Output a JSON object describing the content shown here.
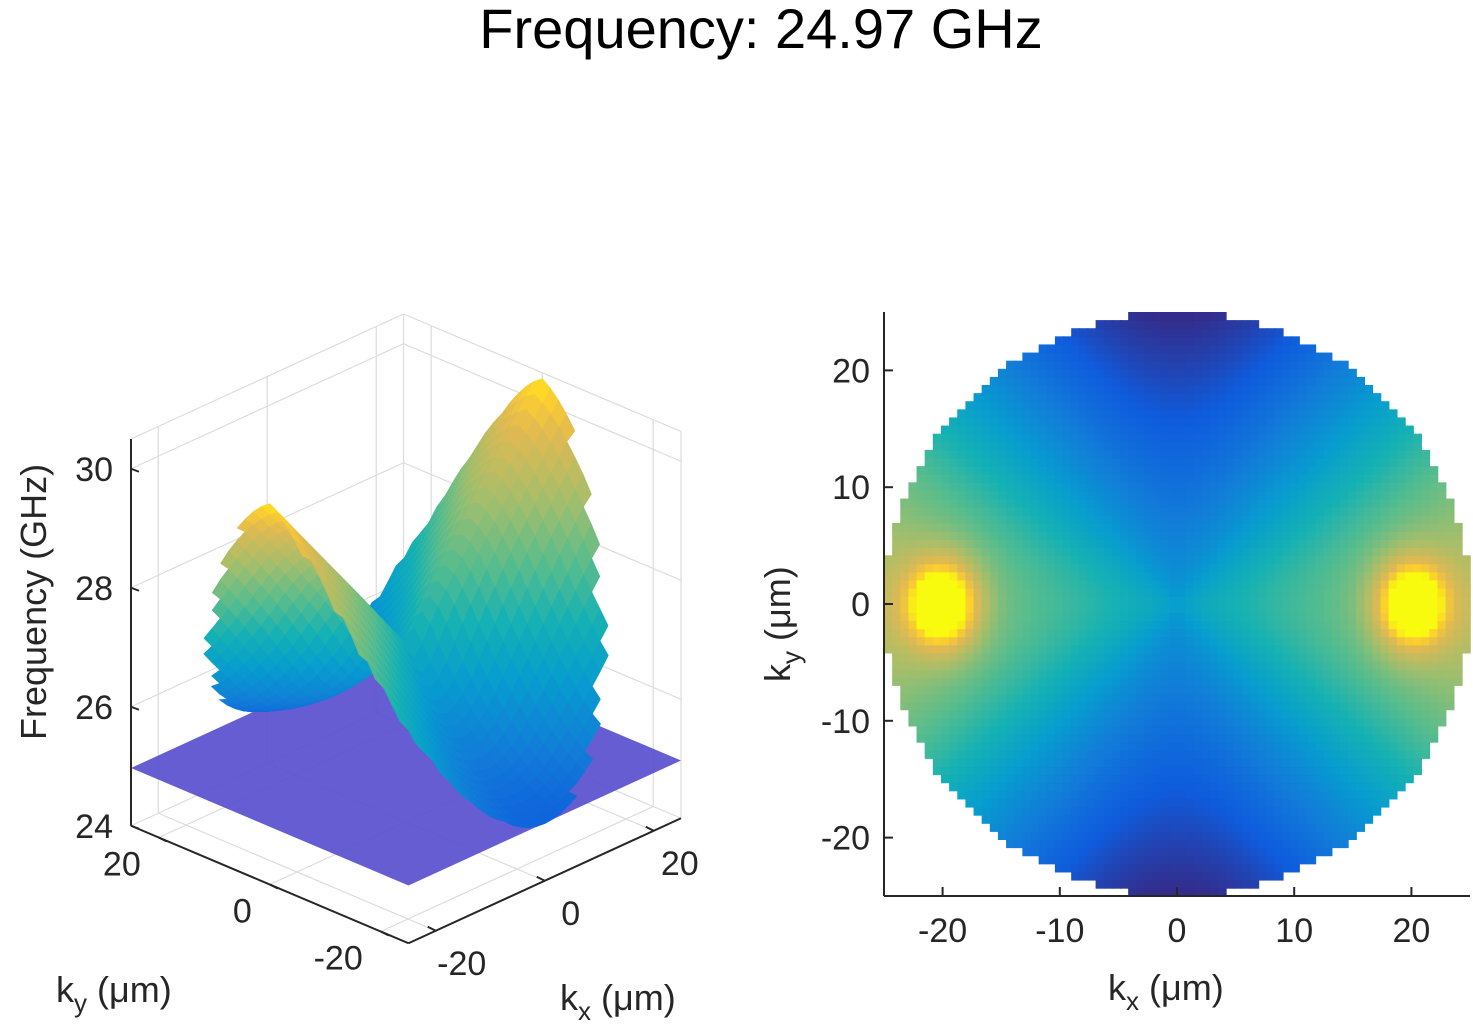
{
  "title": "Frequency: 24.97 GHz",
  "chart_data": [
    {
      "type": "surface",
      "title": "",
      "xlabel": {
        "main": "k",
        "sub": "x",
        "unit": "(μm)"
      },
      "ylabel": {
        "main": "k",
        "sub": "y",
        "unit": "(μm)"
      },
      "zlabel": "Frequency (GHz)",
      "xlim": [
        -25,
        25
      ],
      "ylim": [
        -25,
        25
      ],
      "zlim": [
        24,
        30.5
      ],
      "xticks": [
        "-20",
        "0",
        "20"
      ],
      "yticks": [
        "-20",
        "0",
        "20"
      ],
      "zticks": [
        "24",
        "26",
        "28",
        "30"
      ],
      "xtick_values": [
        -20,
        0,
        20
      ],
      "ytick_values": [
        -20,
        0,
        20
      ],
      "ztick_values": [
        24,
        26,
        28,
        30
      ],
      "plane_frequency": 24.97,
      "surface_model": {
        "f0": 24.0,
        "gain": 6.5,
        "domain_radius": 25
      },
      "colormap": "parula",
      "plane_color": "#5a4fcf",
      "grid": true
    },
    {
      "type": "heatmap",
      "title": "",
      "xlabel": {
        "main": "k",
        "sub": "x",
        "unit": "(μm)"
      },
      "ylabel": {
        "main": "k",
        "sub": "y",
        "unit": "(μm)"
      },
      "xlim": [
        -25,
        25
      ],
      "ylim": [
        -25,
        25
      ],
      "xticks": [
        "-20",
        "-10",
        "0",
        "10",
        "20"
      ],
      "yticks": [
        "-20",
        "-10",
        "0",
        "10",
        "20"
      ],
      "xtick_values": [
        -20,
        -10,
        0,
        10,
        20
      ],
      "ytick_values": [
        -20,
        -10,
        0,
        10,
        20
      ],
      "surface_model": {
        "f0": 24.0,
        "gain": 6.5,
        "domain_radius": 25
      },
      "colormap": "parula",
      "grid": false
    }
  ]
}
